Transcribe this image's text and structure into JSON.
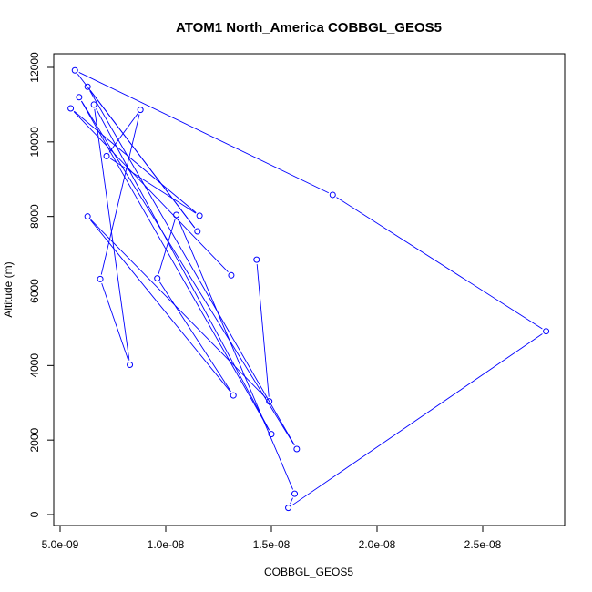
{
  "chart_data": {
    "type": "line",
    "title": "ATOM1 North_America COBBGL_GEOS5",
    "xlabel": "COBBGL_GEOS5",
    "ylabel": "Altitude (m)",
    "xlim": [
      5e-09,
      2.8e-08
    ],
    "ylim": [
      0,
      12000
    ],
    "x_ticks": [
      5e-09,
      1e-08,
      1.5e-08,
      2e-08,
      2.5e-08
    ],
    "x_tick_labels": [
      "5.0e-09",
      "1.0e-08",
      "1.5e-08",
      "2.0e-08",
      "2.5e-08"
    ],
    "y_ticks": [
      0,
      2000,
      4000,
      6000,
      8000,
      10000,
      12000
    ],
    "y_tick_labels": [
      "0",
      "2000",
      "4000",
      "6000",
      "8000",
      "10000",
      "12000"
    ],
    "color": "#0000ff",
    "marker": "open-circle",
    "grid": false,
    "series": [
      {
        "x": [
          1.43e-08,
          1.49e-08,
          6.3e-09,
          1.32e-08,
          9.6e-09,
          1.05e-08,
          1.61e-08,
          1.58e-08,
          2.8e-08,
          1.79e-08,
          5.7e-09,
          1.15e-08,
          6.3e-09,
          1.62e-08,
          5.9e-09,
          1.5e-08,
          6.6e-09,
          8.3e-09,
          6.9e-09,
          8.8e-09,
          7.2e-09,
          1.16e-08,
          5.5e-09,
          1.31e-08
        ],
        "y": [
          6840,
          3040,
          8000,
          3200,
          6340,
          8040,
          560,
          180,
          4920,
          8580,
          11920,
          7600,
          11480,
          1760,
          11200,
          2160,
          11000,
          4020,
          6320,
          10860,
          9620,
          8020,
          10900,
          6420
        ]
      }
    ]
  }
}
